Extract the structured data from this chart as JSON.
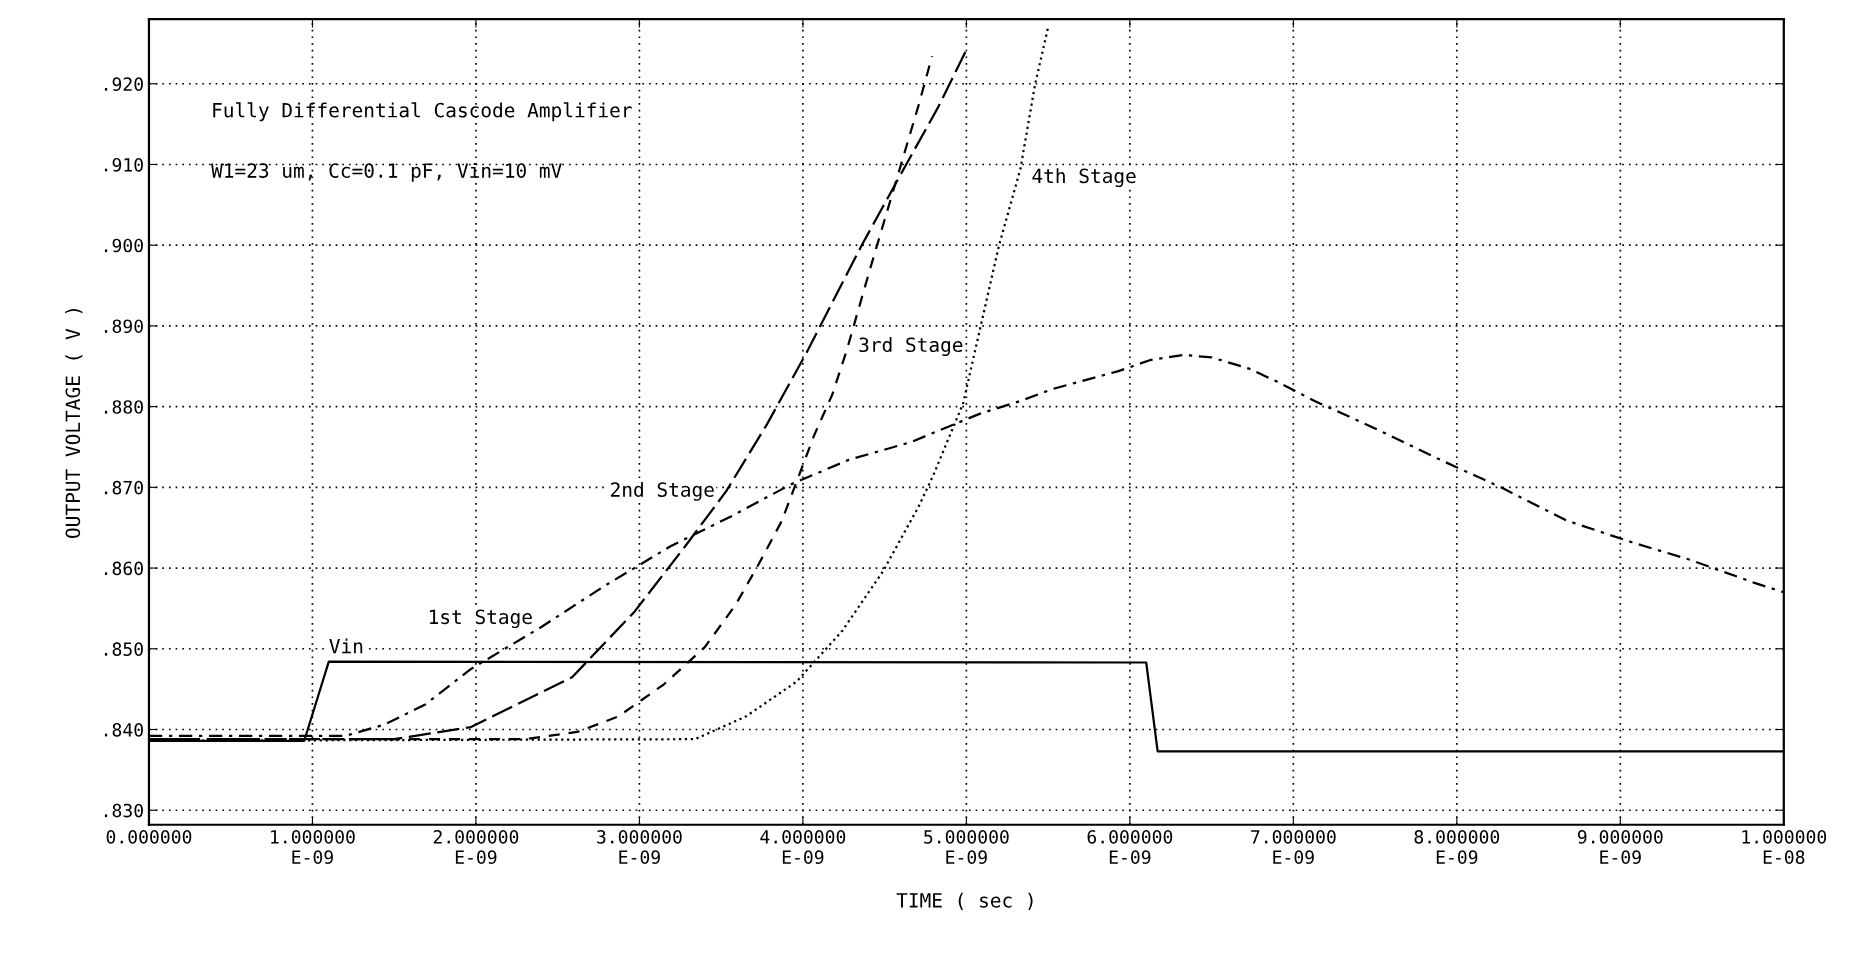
{
  "chart_data": {
    "type": "line",
    "xlabel": "TIME ( sec )",
    "ylabel": "OUTPUT VOLTAGE ( V )",
    "annotations": [
      "Fully Differential Cascode Amplifier",
      "W1=23 um, Cc=0.1 pF, Vin=10 mV"
    ],
    "xlim": [
      0,
      1e-08
    ],
    "ylim": [
      0.8282,
      0.928
    ],
    "xticks": [
      {
        "value": 0,
        "label": "0.000000"
      },
      {
        "value": 1e-09,
        "label": "1.000000E-09"
      },
      {
        "value": 2e-09,
        "label": "2.000000E-09"
      },
      {
        "value": 3e-09,
        "label": "3.000000E-09"
      },
      {
        "value": 4e-09,
        "label": "4.000000E-09"
      },
      {
        "value": 5e-09,
        "label": "5.000000E-09"
      },
      {
        "value": 6e-09,
        "label": "6.000000E-09"
      },
      {
        "value": 7e-09,
        "label": "7.000000E-09"
      },
      {
        "value": 8e-09,
        "label": "8.000000E-09"
      },
      {
        "value": 9e-09,
        "label": "9.000000E-09"
      },
      {
        "value": 1e-08,
        "label": "1.000000E-08"
      }
    ],
    "yticks": [
      {
        "value": 0.83,
        "label": ".830"
      },
      {
        "value": 0.84,
        "label": ".840"
      },
      {
        "value": 0.85,
        "label": ".850"
      },
      {
        "value": 0.86,
        "label": ".860"
      },
      {
        "value": 0.87,
        "label": ".870"
      },
      {
        "value": 0.88,
        "label": ".880"
      },
      {
        "value": 0.89,
        "label": ".890"
      },
      {
        "value": 0.9,
        "label": ".900"
      },
      {
        "value": 0.91,
        "label": ".910"
      },
      {
        "value": 0.92,
        "label": ".920"
      }
    ],
    "grid": true,
    "legend": false,
    "marker": "none",
    "series": [
      {
        "name": "Vin",
        "color": "#000000",
        "line_style": "solid",
        "x": [
          0,
          9.5e-10,
          1.1e-09,
          6.1e-09,
          6.17e-09,
          1e-08
        ],
        "values": [
          0.8386,
          0.8386,
          0.8484,
          0.8483,
          0.8373,
          0.8373
        ]
      },
      {
        "name": "1st Stage",
        "color": "#000000",
        "line_style": "dashed",
        "x": [
          0,
          1.2e-09,
          1.44e-09,
          1.69e-09,
          1.97e-09,
          2.4e-09,
          2.78e-09,
          3.19e-09,
          3.56e-09,
          3.93e-09,
          4.28e-09,
          4.66e-09,
          5.08e-09,
          5.33e-09,
          5.53e-09,
          5.93e-09,
          6.13e-09,
          6.33e-09,
          6.5e-09,
          6.73e-09,
          6.9e-09,
          7.13e-09,
          7.5e-09,
          7.9e-09,
          8.27e-09,
          8.67e-09,
          9.07e-09,
          9.43e-09,
          9.83e-09,
          1e-08
        ],
        "values": [
          0.8392,
          0.8392,
          0.8406,
          0.8431,
          0.8475,
          0.8527,
          0.8577,
          0.8627,
          0.8664,
          0.8704,
          0.8734,
          0.8756,
          0.8791,
          0.8807,
          0.8822,
          0.8844,
          0.8858,
          0.8864,
          0.8861,
          0.8847,
          0.8831,
          0.8807,
          0.8773,
          0.8734,
          0.87,
          0.8659,
          0.8632,
          0.861,
          0.8581,
          0.857
        ]
      },
      {
        "name": "2nd Stage",
        "color": "#000000",
        "line_style": "dashed",
        "x": [
          0,
          1.5e-09,
          1.97e-09,
          2.59e-09,
          2.97e-09,
          3.28e-09,
          3.53e-09,
          3.78e-09,
          4.02e-09,
          4.36e-09,
          4.61e-09,
          4.83e-09,
          5.01e-09
        ],
        "values": [
          0.8388,
          0.8388,
          0.8403,
          0.8465,
          0.8546,
          0.8627,
          0.8695,
          0.8778,
          0.8866,
          0.9,
          0.9092,
          0.9172,
          0.9246
        ]
      },
      {
        "name": "3rd Stage",
        "color": "#000000",
        "line_style": "dashed",
        "x": [
          0,
          2.3e-09,
          2.62e-09,
          2.87e-09,
          3.15e-09,
          3.4e-09,
          3.59e-09,
          3.73e-09,
          3.87e-09,
          4.07e-09,
          4.18e-09,
          4.27e-09,
          4.41e-09,
          4.71e-09,
          4.79e-09
        ],
        "values": [
          0.8388,
          0.8388,
          0.8397,
          0.8416,
          0.8456,
          0.8502,
          0.8555,
          0.8605,
          0.8658,
          0.8765,
          0.8815,
          0.8871,
          0.897,
          0.9175,
          0.9234
        ]
      },
      {
        "name": "4th Stage",
        "color": "#000000",
        "line_style": "dotted",
        "x": [
          0,
          3.34e-09,
          3.65e-09,
          3.96e-09,
          4.24e-09,
          4.49e-09,
          4.71e-09,
          4.8e-09,
          4.98e-09,
          5.2e-09,
          5.33e-09,
          5.42e-09,
          5.5e-09
        ],
        "values": [
          0.8386,
          0.8388,
          0.8416,
          0.8459,
          0.8522,
          0.8596,
          0.8677,
          0.8716,
          0.8804,
          0.9,
          0.9094,
          0.9199,
          0.927
        ]
      }
    ]
  }
}
